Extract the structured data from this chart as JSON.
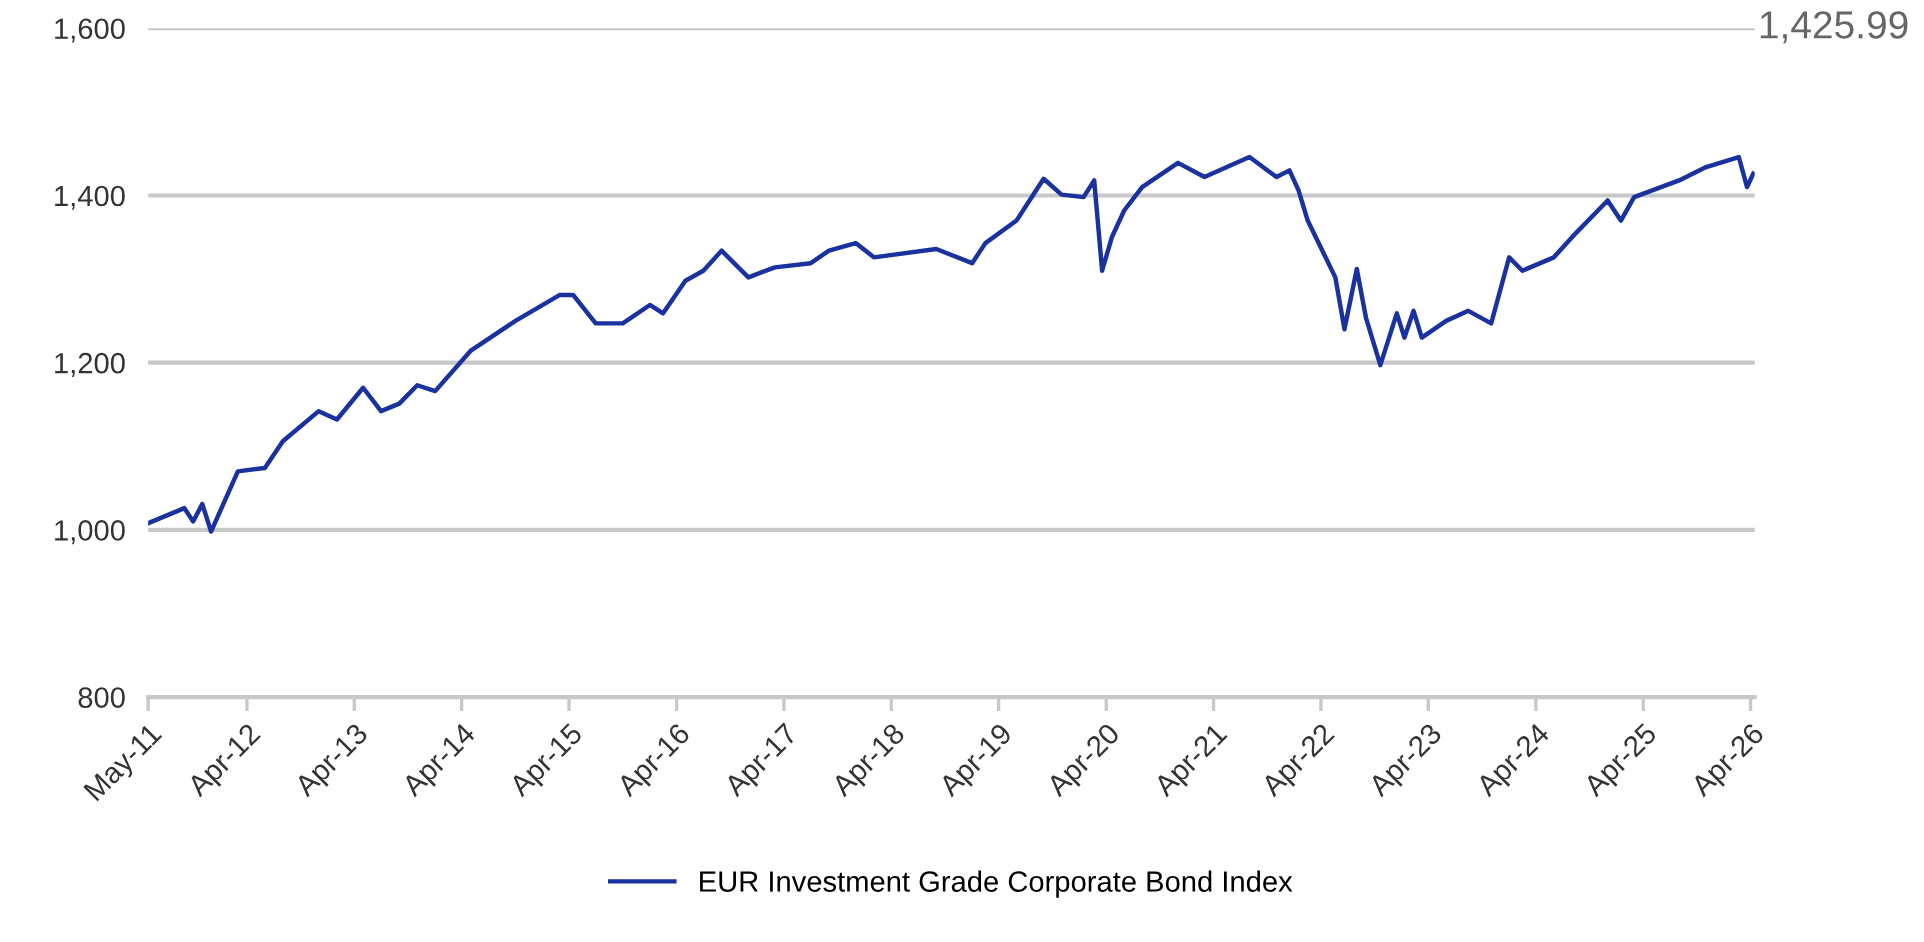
{
  "chart_data": {
    "type": "line",
    "x": [
      "2011-05-01",
      "2011-09-01",
      "2011-10-01",
      "2011-11-01",
      "2011-12-01",
      "2012-03-01",
      "2012-06-01",
      "2012-08-01",
      "2012-12-01",
      "2013-02-01",
      "2013-05-01",
      "2013-07-01",
      "2013-09-01",
      "2013-11-01",
      "2014-01-01",
      "2014-05-01",
      "2014-10-01",
      "2015-03-01",
      "2015-04-15",
      "2015-07-01",
      "2015-10-01",
      "2016-01-01",
      "2016-02-15",
      "2016-05-01",
      "2016-07-01",
      "2016-09-01",
      "2016-12-01",
      "2017-03-01",
      "2017-07-01",
      "2017-09-01",
      "2017-12-01",
      "2018-02-01",
      "2018-09-01",
      "2019-01-01",
      "2019-02-15",
      "2019-06-01",
      "2019-09-01",
      "2019-11-01",
      "2020-01-15",
      "2020-02-20",
      "2020-03-18",
      "2020-04-20",
      "2020-06-01",
      "2020-08-01",
      "2020-12-01",
      "2021-03-01",
      "2021-08-01",
      "2021-11-01",
      "2021-12-15",
      "2022-01-15",
      "2022-02-15",
      "2022-05-20",
      "2022-06-20",
      "2022-08-01",
      "2022-09-01",
      "2022-10-20",
      "2022-12-15",
      "2023-01-10",
      "2023-02-10",
      "2023-03-10",
      "2023-06-01",
      "2023-08-15",
      "2023-11-01",
      "2024-01-01",
      "2024-02-15",
      "2024-06-01",
      "2024-08-15",
      "2024-12-01",
      "2025-01-15",
      "2025-03-01",
      "2025-08-01",
      "2025-11-01",
      "2026-02-20",
      "2026-03-20",
      "2026-04-10"
    ],
    "series": [
      {
        "name": "EUR Investment Grade Corporate Bond Index",
        "color": "#1a32a0",
        "values": [
          1008,
          1026,
          1010,
          1031,
          998,
          1070,
          1074,
          1106,
          1142,
          1132,
          1170,
          1142,
          1151,
          1173,
          1166,
          1214,
          1250,
          1281,
          1281,
          1247,
          1247,
          1269,
          1259,
          1298,
          1310,
          1334,
          1302,
          1314,
          1319,
          1334,
          1343,
          1326,
          1336,
          1319,
          1343,
          1370,
          1420,
          1401,
          1398,
          1418,
          1310,
          1350,
          1382,
          1410,
          1439,
          1422,
          1446,
          1422,
          1430,
          1406,
          1370,
          1302,
          1240,
          1312,
          1254,
          1197,
          1259,
          1230,
          1262,
          1230,
          1250,
          1262,
          1247,
          1326,
          1310,
          1326,
          1355,
          1394,
          1370,
          1398,
          1418,
          1434,
          1446,
          1410,
          1425.99
        ]
      }
    ],
    "xlim": [
      "2011-05-01",
      "2026-04-15"
    ],
    "xticks": [
      {
        "value": "2011-05-01",
        "label": "May-11"
      },
      {
        "value": "2012-04-01",
        "label": "Apr-12"
      },
      {
        "value": "2013-04-01",
        "label": "Apr-13"
      },
      {
        "value": "2014-04-01",
        "label": "Apr-14"
      },
      {
        "value": "2015-04-01",
        "label": "Apr-15"
      },
      {
        "value": "2016-04-01",
        "label": "Apr-16"
      },
      {
        "value": "2017-04-01",
        "label": "Apr-17"
      },
      {
        "value": "2018-04-01",
        "label": "Apr-18"
      },
      {
        "value": "2019-04-01",
        "label": "Apr-19"
      },
      {
        "value": "2020-04-01",
        "label": "Apr-20"
      },
      {
        "value": "2021-04-01",
        "label": "Apr-21"
      },
      {
        "value": "2022-04-01",
        "label": "Apr-22"
      },
      {
        "value": "2023-04-01",
        "label": "Apr-23"
      },
      {
        "value": "2024-04-01",
        "label": "Apr-24"
      },
      {
        "value": "2025-04-01",
        "label": "Apr-25"
      },
      {
        "value": "2026-04-01",
        "label": "Apr-26"
      }
    ],
    "ylim": [
      800,
      1600
    ],
    "yticks": [
      800,
      {
        "value": 1000,
        "label": "1,000"
      },
      {
        "value": 1200,
        "label": "1,200"
      },
      {
        "value": 1400,
        "label": "1,400"
      },
      {
        "value": 1600,
        "label": "1,600"
      }
    ],
    "grid": "y",
    "legend": "bottom",
    "marker": "none",
    "line_style": "solid",
    "annotations": [
      "1,425.99"
    ]
  }
}
